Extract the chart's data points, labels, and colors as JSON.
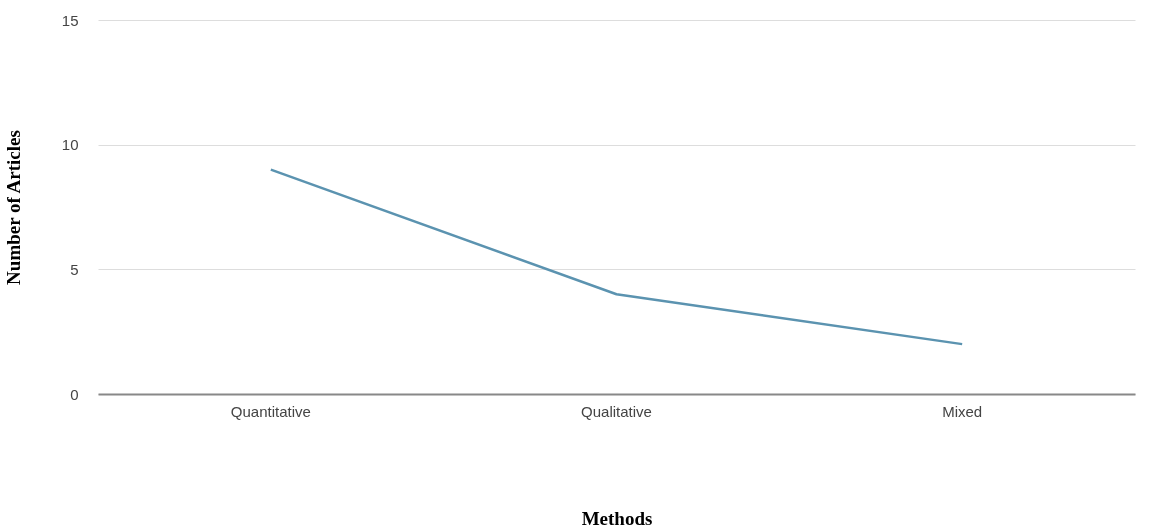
{
  "chart_data": {
    "type": "line",
    "xlabel": "Methods",
    "ylabel": "Number of Articles",
    "categories": [
      "Quantitative",
      "Qualitative",
      "Mixed"
    ],
    "series": [
      {
        "color": "#5b93b0",
        "values": [
          9,
          4,
          2
        ]
      }
    ],
    "ylim": [
      0,
      15
    ],
    "yticks": [
      0,
      5,
      10,
      15
    ],
    "grid": "y"
  }
}
